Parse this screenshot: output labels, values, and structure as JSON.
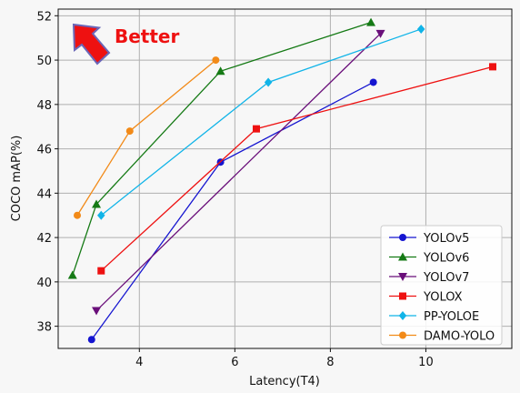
{
  "chart_data": {
    "type": "line",
    "xlabel": "Latency(T4)",
    "ylabel": "COCO mAP(%)",
    "xlim": [
      2.3,
      11.8
    ],
    "ylim": [
      37.0,
      52.3
    ],
    "xticks": [
      4,
      6,
      8,
      10
    ],
    "yticks": [
      38,
      40,
      42,
      44,
      46,
      48,
      50,
      52
    ],
    "grid": true,
    "legend": "bottom-right",
    "annotation": {
      "text": "Better",
      "color": "#ee1111"
    },
    "series": [
      {
        "name": "YOLOv5",
        "color": "#1515d0",
        "marker": "circle",
        "x": [
          3.0,
          5.7,
          8.9
        ],
        "y": [
          37.4,
          45.4,
          49.0
        ]
      },
      {
        "name": "YOLOv6",
        "color": "#157a15",
        "marker": "triangle-up",
        "x": [
          2.6,
          3.1,
          5.7,
          8.85
        ],
        "y": [
          40.3,
          43.5,
          49.5,
          51.7
        ]
      },
      {
        "name": "YOLOv7",
        "color": "#6a0f7a",
        "marker": "triangle-down",
        "x": [
          3.1,
          9.05
        ],
        "y": [
          38.7,
          51.2
        ]
      },
      {
        "name": "YOLOX",
        "color": "#ee1111",
        "marker": "square",
        "x": [
          3.2,
          6.45,
          11.4
        ],
        "y": [
          40.5,
          46.9,
          49.7
        ]
      },
      {
        "name": "PP-YOLOE",
        "color": "#10b4e8",
        "marker": "diamond",
        "x": [
          3.2,
          6.7,
          9.9
        ],
        "y": [
          43.0,
          49.0,
          51.4
        ]
      },
      {
        "name": "DAMO-YOLO",
        "color": "#f28a18",
        "marker": "circle",
        "x": [
          2.7,
          3.8,
          5.6
        ],
        "y": [
          43.0,
          46.8,
          50.0
        ]
      }
    ]
  }
}
